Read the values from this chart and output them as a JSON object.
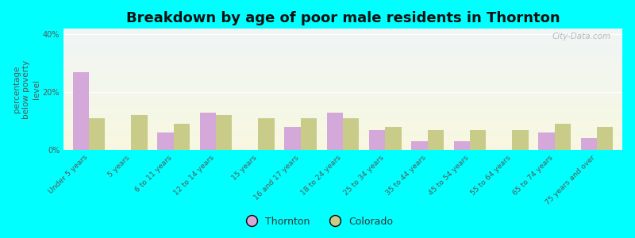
{
  "title": "Breakdown by age of poor male residents in Thornton",
  "ylabel": "percentage\nbelow poverty\nlevel",
  "categories": [
    "Under 5 years",
    "5 years",
    "6 to 11 years",
    "12 to 14 years",
    "15 years",
    "16 and 17 years",
    "18 to 24 years",
    "25 to 34 years",
    "35 to 44 years",
    "45 to 54 years",
    "55 to 64 years",
    "65 to 74 years",
    "75 years and over"
  ],
  "thornton": [
    27,
    0,
    6,
    13,
    0,
    8,
    13,
    7,
    3,
    3,
    0,
    6,
    4
  ],
  "colorado": [
    11,
    12,
    9,
    12,
    11,
    11,
    11,
    8,
    7,
    7,
    7,
    9,
    8
  ],
  "thornton_color": "#d4a8d8",
  "colorado_color": "#c8cc88",
  "ylim": [
    0,
    42
  ],
  "yticks": [
    0,
    20,
    40
  ],
  "ytick_labels": [
    "0%",
    "20%",
    "40%"
  ],
  "bg_color": "#00ffff",
  "bar_width": 0.38,
  "watermark": "City-Data.com",
  "title_fontsize": 13,
  "axis_label_fontsize": 7.5,
  "tick_fontsize": 7,
  "legend_fontsize": 9
}
